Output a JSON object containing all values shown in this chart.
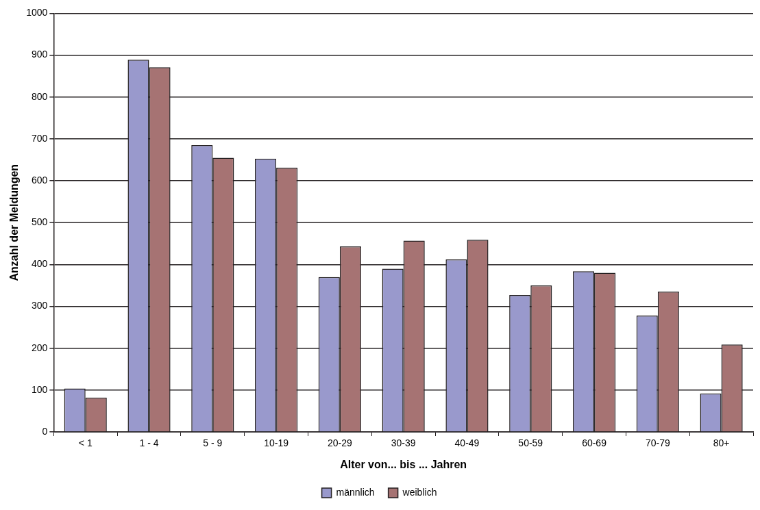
{
  "chart_data": {
    "type": "bar",
    "xlabel": "Alter von... bis ... Jahren",
    "ylabel": "Anzahl der Meldungen",
    "categories": [
      "< 1",
      "1 - 4",
      "5 - 9",
      "10-19",
      "20-29",
      "30-39",
      "40-49",
      "50-59",
      "60-69",
      "70-79",
      "80+"
    ],
    "series": [
      {
        "name": "männlich",
        "color": "#9999cc",
        "values": [
          104,
          889,
          685,
          653,
          370,
          390,
          412,
          327,
          384,
          278,
          92
        ]
      },
      {
        "name": "weiblich",
        "color": "#a67373",
        "values": [
          82,
          871,
          655,
          631,
          443,
          457,
          459,
          350,
          380,
          335,
          209
        ]
      }
    ],
    "ylim": [
      0,
      1000
    ],
    "yticks": [
      0,
      100,
      200,
      300,
      400,
      500,
      600,
      700,
      800,
      900,
      1000
    ],
    "grid": "y",
    "legend": "bottom"
  }
}
